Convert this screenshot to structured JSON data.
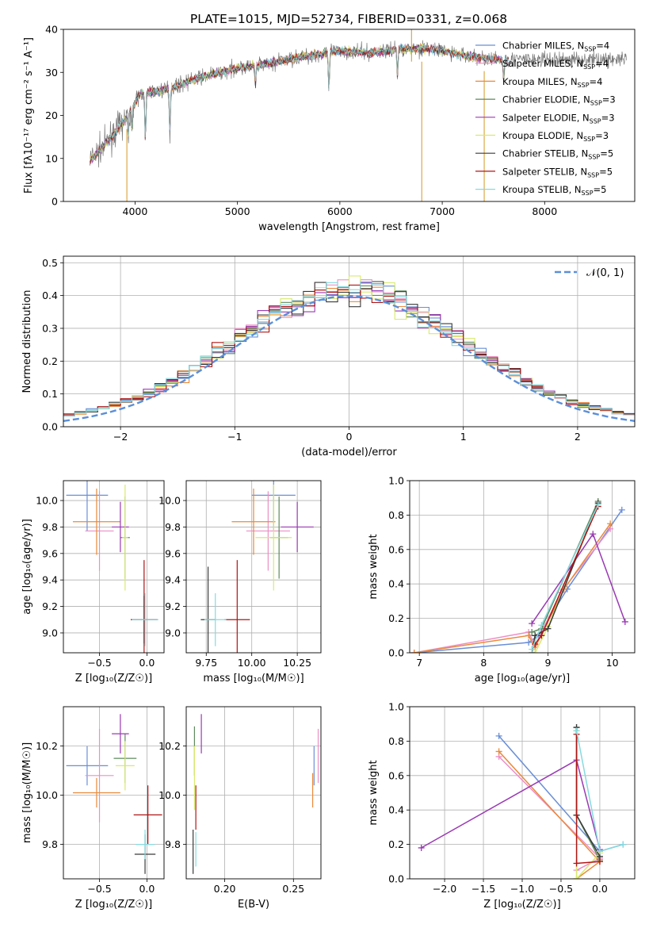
{
  "title": "PLATE=1015, MJD=52734, FIBERID=0331, z=0.068",
  "models": [
    {
      "name": "Chabrier MILES",
      "n": "4",
      "color": "#6a8fd6"
    },
    {
      "name": "Salpeter MILES",
      "n": "4",
      "color": "#ec8fc6"
    },
    {
      "name": "Kroupa MILES",
      "n": "4",
      "color": "#e98a3b"
    },
    {
      "name": "Chabrier ELODIE",
      "n": "3",
      "color": "#5d8a5d"
    },
    {
      "name": "Salpeter ELODIE",
      "n": "3",
      "color": "#9a3ab4"
    },
    {
      "name": "Kroupa ELODIE",
      "n": "3",
      "color": "#d8ea6c"
    },
    {
      "name": "Chabrier STELIB",
      "n": "5",
      "color": "#3a3a3a"
    },
    {
      "name": "Salpeter STELIB",
      "n": "5",
      "color": "#b01515"
    },
    {
      "name": "Kroupa STELIB",
      "n": "5",
      "color": "#86dadf"
    }
  ],
  "chart_data": [
    {
      "id": "spectrum",
      "type": "line",
      "xlabel": "wavelength [Angstrom, rest frame]",
      "ylabel": "Flux [fλ10⁻¹⁷ erg cm⁻² s⁻¹ A⁻¹]",
      "xlim": [
        3300,
        8880
      ],
      "ylim": [
        0,
        40
      ],
      "xticks": [
        4000,
        5000,
        6000,
        7000,
        8000
      ],
      "yticks": [
        0,
        10,
        20,
        30,
        40
      ],
      "grid": false,
      "legend": "right",
      "continuum": {
        "x": [
          3580,
          3700,
          3900,
          4050,
          4300,
          4600,
          5000,
          5300,
          5600,
          6000,
          6300,
          6600,
          6900,
          7200,
          7500
        ],
        "y": [
          10,
          13,
          19,
          25,
          26,
          28.5,
          31,
          32,
          33.5,
          35,
          34.5,
          35.5,
          35.5,
          34,
          33
        ]
      },
      "data_x_range": [
        3560,
        8800
      ],
      "model_x_range": [
        3560,
        7650
      ],
      "absorption": [
        {
          "x": 3934,
          "y": 15
        },
        {
          "x": 3968,
          "y": 17
        },
        {
          "x": 4101,
          "y": 14.5
        },
        {
          "x": 4340,
          "y": 15.5
        },
        {
          "x": 5175,
          "y": 27
        },
        {
          "x": 5893,
          "y": 26
        },
        {
          "x": 6563,
          "y": 29
        },
        {
          "x": 7600,
          "y": 28
        }
      ],
      "spikes": [
        {
          "x": 3920,
          "y": 0
        },
        {
          "x": 6800,
          "y": 0
        },
        {
          "x": 7410,
          "y": 0
        },
        {
          "x": 6700,
          "y": 40
        }
      ]
    },
    {
      "id": "residuals",
      "type": "line",
      "xlabel": "(data-model)/error",
      "ylabel": "Normed distribution",
      "xlim": [
        -2.5,
        2.5
      ],
      "ylim": [
        0,
        0.52
      ],
      "xticks": [
        -2,
        -1,
        0,
        1,
        2
      ],
      "yticks": [
        0.0,
        0.1,
        0.2,
        0.3,
        0.4,
        0.5
      ],
      "grid": true,
      "legend": "top-right",
      "reference": {
        "name": "𝒩(0, 1)",
        "mean": 0,
        "sigma": 1
      },
      "bin_width": 0.1
    },
    {
      "id": "age-vs-Z",
      "type": "scatter",
      "xlabel": "Z [log₁₀(Z/Z☉)]",
      "ylabel": "age  [log₁₀(age/yr)]",
      "xlim": [
        -0.88,
        0.18
      ],
      "ylim": [
        8.85,
        10.15
      ],
      "xticks": [
        -0.5,
        0.0
      ],
      "yticks": [
        9.0,
        9.2,
        9.4,
        9.6,
        9.8,
        10.0
      ],
      "grid": true,
      "points": [
        {
          "x": -0.63,
          "xerr": 0.22,
          "y": 10.04,
          "yerr": 0.27
        },
        {
          "x": -0.5,
          "xerr": 0.15,
          "y": 9.77,
          "yerr": 0.3
        },
        {
          "x": -0.53,
          "xerr": 0.25,
          "y": 9.84,
          "yerr": 0.25
        },
        {
          "x": -0.23,
          "xerr": 0.05,
          "y": 9.72,
          "yerr": 0.31
        },
        {
          "x": -0.28,
          "xerr": 0.09,
          "y": 9.8,
          "yerr": 0.19
        },
        {
          "x": -0.23,
          "xerr": 0.03,
          "y": 9.72,
          "yerr": 0.4
        },
        {
          "x": -0.03,
          "xerr": 0.14,
          "y": 9.1,
          "yerr": 0.18
        },
        {
          "x": -0.03,
          "xerr": 0.14,
          "y": 9.1,
          "yerr": 0.45
        },
        {
          "x": -0.02,
          "xerr": 0.14,
          "y": 9.1,
          "yerr": 0.2
        }
      ]
    },
    {
      "id": "age-vs-mass",
      "type": "scatter",
      "xlabel": "mass [log₁₀(M/M☉)]",
      "ylabel": "",
      "xlim": [
        9.64,
        10.38
      ],
      "ylim": [
        8.85,
        10.15
      ],
      "xticks": [
        9.75,
        10.0,
        10.25
      ],
      "yticks": [
        9.0,
        9.2,
        9.4,
        9.6,
        9.8,
        10.0
      ],
      "grid": true,
      "points": [
        {
          "x": 10.12,
          "xerr": 0.12,
          "y": 10.04,
          "yerr": 0.27
        },
        {
          "x": 10.09,
          "xerr": 0.12,
          "y": 9.77,
          "yerr": 0.3
        },
        {
          "x": 10.01,
          "xerr": 0.12,
          "y": 9.84,
          "yerr": 0.25
        },
        {
          "x": 10.15,
          "xerr": 0.05,
          "y": 9.72,
          "yerr": 0.31
        },
        {
          "x": 10.25,
          "xerr": 0.09,
          "y": 9.8,
          "yerr": 0.19
        },
        {
          "x": 10.12,
          "xerr": 0.1,
          "y": 9.72,
          "yerr": 0.4
        },
        {
          "x": 9.76,
          "xerr": 0.04,
          "y": 9.1,
          "yerr": 0.4
        },
        {
          "x": 9.92,
          "xerr": 0.07,
          "y": 9.1,
          "yerr": 0.45
        },
        {
          "x": 9.8,
          "xerr": 0.06,
          "y": 9.1,
          "yerr": 0.2
        }
      ]
    },
    {
      "id": "weight-vs-age",
      "type": "line",
      "xlabel": "age  [log₁₀(age/yr)]",
      "ylabel": "mass weight",
      "xlim": [
        6.85,
        10.35
      ],
      "ylim": [
        0,
        1.0
      ],
      "xticks": [
        7,
        8,
        9,
        10
      ],
      "yticks": [
        0.0,
        0.2,
        0.4,
        0.6,
        0.8,
        1.0
      ],
      "grid": true,
      "series": [
        {
          "x": [
            6.92,
            8.7,
            8.85,
            9.3,
            10.15
          ],
          "y": [
            0.0,
            0.06,
            0.1,
            0.37,
            0.83
          ]
        },
        {
          "x": [
            6.92,
            8.7,
            8.8,
            9.2,
            9.97
          ],
          "y": [
            0.0,
            0.12,
            0.04,
            0.35,
            0.72
          ]
        },
        {
          "x": [
            6.92,
            8.7,
            8.8,
            9.25,
            9.97
          ],
          "y": [
            0.0,
            0.1,
            0.03,
            0.37,
            0.75
          ]
        },
        {
          "x": [
            8.75,
            8.9,
            9.78
          ],
          "y": [
            0.12,
            0.14,
            0.88
          ]
        },
        {
          "x": [
            8.75,
            9.7,
            10.2
          ],
          "y": [
            0.17,
            0.69,
            0.18
          ]
        },
        {
          "x": [
            8.8,
            9.0,
            9.78
          ],
          "y": [
            0.0,
            0.15,
            0.86
          ]
        },
        {
          "x": [
            8.75,
            8.8,
            9.0,
            9.78
          ],
          "y": [
            0.0,
            0.1,
            0.14,
            0.87
          ]
        },
        {
          "x": [
            8.8,
            8.9,
            9.78
          ],
          "y": [
            0.05,
            0.1,
            0.85
          ]
        },
        {
          "x": [
            8.75,
            8.9,
            9.78
          ],
          "y": [
            0.02,
            0.16,
            0.86
          ]
        }
      ]
    },
    {
      "id": "mass-vs-Z",
      "type": "scatter",
      "xlabel": "Z [log₁₀(Z/Z☉)]",
      "ylabel": "mass [log₁₀(M/M☉)]",
      "xlim": [
        -0.88,
        0.18
      ],
      "ylim": [
        9.66,
        10.36
      ],
      "xticks": [
        -0.5,
        0.0
      ],
      "yticks": [
        9.8,
        10.0,
        10.2
      ],
      "grid": true,
      "points": [
        {
          "x": -0.63,
          "xerr": 0.22,
          "y": 10.12,
          "yerr": 0.08
        },
        {
          "x": -0.5,
          "xerr": 0.15,
          "y": 10.08,
          "yerr": 0.19
        },
        {
          "x": -0.53,
          "xerr": 0.25,
          "y": 10.01,
          "yerr": 0.06
        },
        {
          "x": -0.23,
          "xerr": 0.12,
          "y": 10.15,
          "yerr": 0.1
        },
        {
          "x": -0.28,
          "xerr": 0.09,
          "y": 10.25,
          "yerr": 0.08
        },
        {
          "x": -0.23,
          "xerr": 0.1,
          "y": 10.12,
          "yerr": 0.1
        },
        {
          "x": -0.02,
          "xerr": 0.11,
          "y": 9.76,
          "yerr": 0.08
        },
        {
          "x": 0.01,
          "xerr": 0.15,
          "y": 9.92,
          "yerr": 0.12
        },
        {
          "x": -0.02,
          "xerr": 0.1,
          "y": 9.8,
          "yerr": 0.06
        }
      ]
    },
    {
      "id": "mass-vs-ebv",
      "type": "scatter",
      "xlabel": "E(B-V)",
      "ylabel": "",
      "xlim": [
        0.172,
        0.27
      ],
      "ylim": [
        9.66,
        10.36
      ],
      "xticks": [
        0.2,
        0.25
      ],
      "yticks": [
        9.8,
        10.0,
        10.2
      ],
      "grid": true,
      "points": [
        {
          "x": 0.265,
          "y": 10.12,
          "yerr": 0.08
        },
        {
          "x": 0.268,
          "y": 10.16,
          "yerr": 0.11
        },
        {
          "x": 0.264,
          "y": 10.02,
          "yerr": 0.07
        },
        {
          "x": 0.178,
          "y": 10.18,
          "yerr": 0.1
        },
        {
          "x": 0.183,
          "y": 10.25,
          "yerr": 0.08
        },
        {
          "x": 0.178,
          "y": 10.07,
          "yerr": 0.13
        },
        {
          "x": 0.177,
          "y": 9.77,
          "yerr": 0.09
        },
        {
          "x": 0.179,
          "y": 9.95,
          "yerr": 0.09
        },
        {
          "x": 0.179,
          "y": 9.78,
          "yerr": 0.07
        }
      ]
    },
    {
      "id": "weight-vs-Z",
      "type": "line",
      "xlabel": "Z [log₁₀(Z/Z☉)]",
      "ylabel": "mass weight",
      "xlim": [
        -2.45,
        0.45
      ],
      "ylim": [
        0,
        1.0
      ],
      "xticks": [
        -2.0,
        -1.5,
        -1.0,
        -0.5,
        0.0
      ],
      "yticks": [
        0.0,
        0.2,
        0.4,
        0.6,
        0.8,
        1.0
      ],
      "grid": true,
      "series": [
        {
          "x": [
            -1.3,
            0.0,
            0.3
          ],
          "y": [
            0.83,
            0.16,
            0.2
          ]
        },
        {
          "x": [
            -1.3,
            0.0,
            -0.3
          ],
          "y": [
            0.71,
            0.12,
            0.05
          ]
        },
        {
          "x": [
            -1.3,
            0.0,
            -0.3
          ],
          "y": [
            0.74,
            0.1,
            0.0
          ]
        },
        {
          "x": [
            -0.3,
            -0.3,
            0.0
          ],
          "y": [
            0.88,
            0.37,
            0.11
          ]
        },
        {
          "x": [
            -2.3,
            -0.3,
            0.0
          ],
          "y": [
            0.18,
            0.69,
            0.17
          ]
        },
        {
          "x": [
            -0.3,
            -0.3,
            0.0
          ],
          "y": [
            0.86,
            0.0,
            0.15
          ]
        },
        {
          "x": [
            -0.3,
            -0.3,
            0.0
          ],
          "y": [
            0.88,
            0.37,
            0.13
          ]
        },
        {
          "x": [
            -0.3,
            -0.3,
            0.0
          ],
          "y": [
            0.84,
            0.09,
            0.1
          ]
        },
        {
          "x": [
            -0.3,
            0.0,
            0.3
          ],
          "y": [
            0.86,
            0.16,
            0.2
          ]
        }
      ]
    }
  ]
}
